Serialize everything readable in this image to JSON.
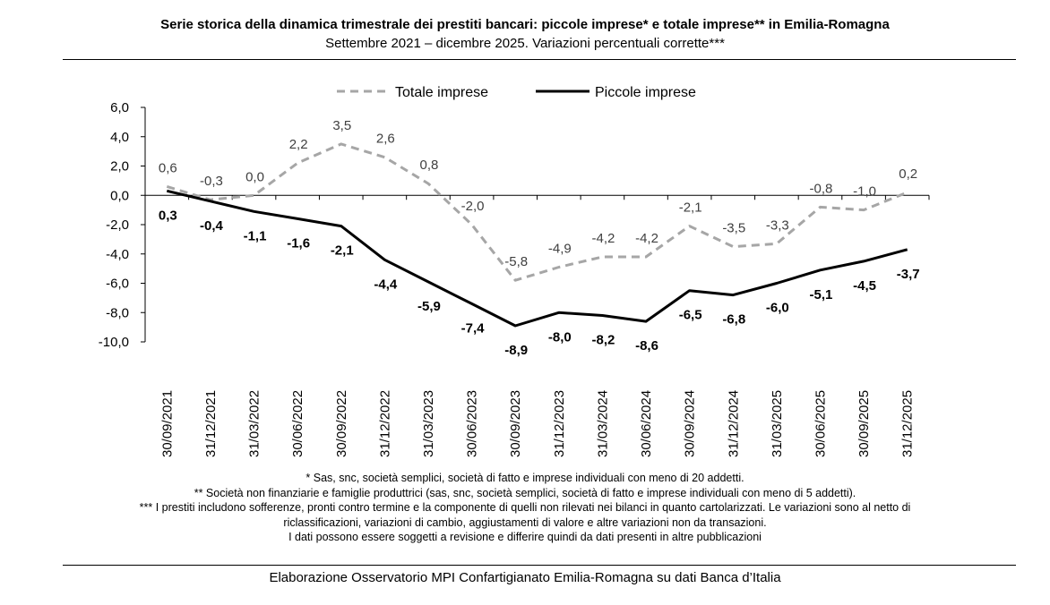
{
  "header": {
    "title": "Serie storica della dinamica trimestrale dei prestiti bancari: piccole imprese* e totale imprese** in Emilia-Romagna",
    "subtitle": "Settembre 2021 – dicembre 2025. Variazioni percentuali corrette***"
  },
  "chart_data": {
    "type": "line",
    "categories": [
      "30/09/2021",
      "31/12/2021",
      "31/03/2022",
      "30/06/2022",
      "30/09/2022",
      "31/12/2022",
      "31/03/2023",
      "30/06/2023",
      "30/09/2023",
      "31/12/2023",
      "31/03/2024",
      "30/06/2024",
      "30/09/2024",
      "31/12/2024",
      "31/03/2025",
      "30/06/2025",
      "30/09/2025",
      "31/12/2025"
    ],
    "series": [
      {
        "name": "Totale imprese",
        "style": "dashed",
        "color": "#a6a6a6",
        "values": [
          0.6,
          -0.3,
          0.0,
          2.2,
          3.5,
          2.6,
          0.8,
          -2.0,
          -5.8,
          -4.9,
          -4.2,
          -4.2,
          -2.1,
          -3.5,
          -3.3,
          -0.8,
          -1.0,
          0.2
        ]
      },
      {
        "name": "Piccole imprese",
        "style": "solid",
        "color": "#000000",
        "values": [
          0.3,
          -0.4,
          -1.1,
          -1.6,
          -2.1,
          -4.4,
          -5.9,
          -7.4,
          -8.9,
          -8.0,
          -8.2,
          -8.6,
          -6.5,
          -6.8,
          -6.0,
          -5.1,
          -4.5,
          -3.7
        ]
      }
    ],
    "ylim": [
      -10,
      6
    ],
    "yticks": [
      -10,
      -8,
      -6,
      -4,
      -2,
      0,
      2,
      4,
      6
    ],
    "legend_position": "top-center",
    "grid": false
  },
  "notes": [
    "* Sas, snc, società semplici, società di fatto e imprese individuali con meno di 20 addetti.",
    "** Società non finanziarie e famiglie produttrici (sas, snc, società semplici, società di fatto e imprese individuali con meno di 5 addetti).",
    "*** I prestiti includono sofferenze, pronti contro termine e la componente di quelli non rilevati nei bilanci in quanto cartolarizzati. Le variazioni sono al netto di",
    "riclassificazioni, variazioni di cambio, aggiustamenti di valore e altre variazioni non da transazioni.",
    "I dati possono essere soggetti a revisione e differire quindi da dati presenti in altre pubblicazioni"
  ],
  "source": "Elaborazione Osservatorio MPI Confartigianato Emilia-Romagna su dati Banca d’Italia"
}
